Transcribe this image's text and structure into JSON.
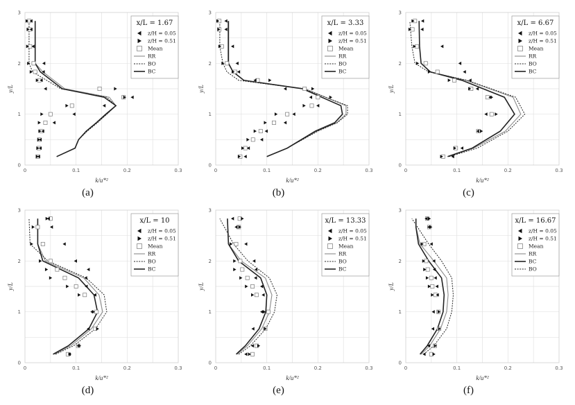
{
  "chart_data": [
    {
      "type": "line+scatter",
      "panel_label": "(a)",
      "title": "x/L = 1.67",
      "xlabel": "k/u*²",
      "ylabel": "y/L",
      "xlim": [
        0,
        0.3
      ],
      "ylim": [
        0,
        3
      ],
      "xticks": [
        "0",
        "0.1",
        "0.2",
        "0.3"
      ],
      "yticks": [
        "0",
        "1",
        "2",
        "3"
      ],
      "legend": {
        "placement": "top-right",
        "markers": [
          "z/H = 0.05",
          "z/H = 0.51",
          "Mean"
        ],
        "lines": [
          "RR",
          "BO",
          "BC"
        ]
      },
      "points": {
        "y": [
          2.833,
          2.667,
          2.333,
          2.0,
          1.833,
          1.667,
          1.5,
          1.333,
          1.167,
          1.0,
          0.833,
          0.667,
          0.5,
          0.333,
          0.167
        ],
        "z005": [
          0.012,
          0.012,
          0.016,
          0.037,
          0.036,
          0.032,
          0.04,
          0.21,
          0.155,
          0.096,
          0.057,
          0.035,
          0.03,
          0.03,
          0.027
        ],
        "z051": [
          0.004,
          0.006,
          0.005,
          0.007,
          0.012,
          0.024,
          0.177,
          0.195,
          0.082,
          0.033,
          0.028,
          0.029,
          0.027,
          0.025,
          0.024
        ],
        "mean": [
          0.008,
          0.009,
          0.01,
          0.017,
          0.02,
          0.028,
          0.146,
          0.193,
          0.092,
          0.05,
          0.04,
          0.032,
          0.028,
          0.027,
          0.025
        ]
      },
      "series": [
        {
          "name": "RR",
          "x": [
            0.062,
            0.098,
            0.105,
            0.12,
            0.14,
            0.16,
            0.178,
            0.165,
            0.078,
            0.035,
            0.02,
            0.02
          ],
          "y": [
            0.167,
            0.333,
            0.5,
            0.667,
            0.833,
            1.0,
            1.167,
            1.333,
            1.5,
            1.833,
            2.0,
            2.833
          ]
        },
        {
          "name": "BO",
          "x": [
            0.062,
            0.098,
            0.105,
            0.122,
            0.142,
            0.16,
            0.178,
            0.16,
            0.07,
            0.015,
            0.008,
            0.008
          ],
          "y": [
            0.167,
            0.333,
            0.5,
            0.667,
            0.833,
            1.0,
            1.167,
            1.333,
            1.5,
            1.833,
            2.0,
            2.833
          ]
        },
        {
          "name": "BC",
          "x": [
            0.062,
            0.098,
            0.105,
            0.12,
            0.14,
            0.158,
            0.178,
            0.155,
            0.073,
            0.03,
            0.02,
            0.02
          ],
          "y": [
            0.167,
            0.333,
            0.5,
            0.667,
            0.833,
            1.0,
            1.167,
            1.333,
            1.5,
            1.833,
            2.0,
            2.833
          ]
        }
      ]
    },
    {
      "type": "line+scatter",
      "panel_label": "(b)",
      "title": "x/L = 3.33",
      "xlabel": "k/u*²",
      "ylabel": "y/L",
      "xlim": [
        0,
        0.3
      ],
      "ylim": [
        0,
        3
      ],
      "xticks": [
        "0",
        "0.1",
        "0.2",
        "0.3"
      ],
      "yticks": [
        "0",
        "1",
        "2",
        "3"
      ],
      "legend": {
        "placement": "top-right",
        "markers": [
          "z/H = 0.05",
          "z/H = 0.51",
          "Mean"
        ],
        "lines": [
          "RR",
          "BO",
          "BC"
        ]
      },
      "points": {
        "y": [
          2.833,
          2.667,
          2.333,
          2.0,
          1.833,
          1.667,
          1.5,
          1.333,
          1.167,
          1.0,
          0.833,
          0.667,
          0.5,
          0.333,
          0.167
        ],
        "z005": [
          0.02,
          0.02,
          0.033,
          0.042,
          0.045,
          0.077,
          0.136,
          0.186,
          0.2,
          0.153,
          0.136,
          0.099,
          0.09,
          0.064,
          0.058
        ],
        "z051": [
          0.004,
          0.006,
          0.008,
          0.014,
          0.034,
          0.106,
          0.19,
          0.225,
          0.173,
          0.118,
          0.097,
          0.077,
          0.063,
          0.053,
          0.046
        ],
        "mean": [
          0.007,
          0.007,
          0.012,
          0.022,
          0.038,
          0.082,
          0.174,
          0.2,
          0.188,
          0.14,
          0.114,
          0.088,
          0.073,
          0.058,
          0.048
        ]
      },
      "series": [
        {
          "name": "RR",
          "x": [
            0.1,
            0.14,
            0.198,
            0.237,
            0.255,
            0.255,
            0.175,
            0.055,
            0.034,
            0.024,
            0.024
          ],
          "y": [
            0.167,
            0.333,
            0.667,
            0.833,
            1.0,
            1.167,
            1.5,
            1.667,
            1.833,
            2.0,
            2.833
          ]
        },
        {
          "name": "BO",
          "x": [
            0.1,
            0.14,
            0.2,
            0.238,
            0.258,
            0.258,
            0.172,
            0.045,
            0.022,
            0.014,
            0.008,
            0.008
          ],
          "y": [
            0.167,
            0.333,
            0.667,
            0.833,
            1.0,
            1.167,
            1.5,
            1.667,
            1.833,
            2.0,
            2.333,
            2.833
          ]
        },
        {
          "name": "BC",
          "x": [
            0.1,
            0.14,
            0.195,
            0.233,
            0.248,
            0.245,
            0.17,
            0.055,
            0.034,
            0.025,
            0.025
          ],
          "y": [
            0.167,
            0.333,
            0.667,
            0.833,
            1.0,
            1.167,
            1.5,
            1.667,
            1.833,
            2.0,
            2.833
          ]
        }
      ]
    },
    {
      "type": "line+scatter",
      "panel_label": "(c)",
      "title": "x/L = 6.67",
      "xlabel": "k/u*²",
      "ylabel": "y/L",
      "xlim": [
        0,
        0.3
      ],
      "ylim": [
        0,
        3
      ],
      "xticks": [
        "0",
        "0.1",
        "0.2",
        "0.3"
      ],
      "yticks": [
        "0",
        "1",
        "2",
        "3"
      ],
      "legend": {
        "placement": "top-right",
        "markers": [
          "z/H = 0.05",
          "z/H = 0.51",
          "Mean"
        ],
        "lines": [
          "RR",
          "BO",
          "BC"
        ]
      },
      "points": {
        "y": [
          2.833,
          2.667,
          2.333,
          2.0,
          1.833,
          1.667,
          1.5,
          1.333,
          1.0,
          0.667,
          0.333,
          0.167
        ],
        "z005": [
          0.033,
          0.032,
          0.071,
          0.106,
          0.115,
          0.126,
          0.14,
          0.165,
          0.157,
          0.141,
          0.11,
          0.092
        ],
        "z051": [
          0.014,
          0.008,
          0.017,
          0.023,
          0.046,
          0.085,
          0.125,
          0.168,
          0.177,
          0.148,
          0.096,
          0.07
        ],
        "mean": [
          0.018,
          0.013,
          0.022,
          0.039,
          0.062,
          0.095,
          0.128,
          0.16,
          0.168,
          0.142,
          0.098,
          0.073
        ]
      },
      "series": [
        {
          "name": "RR",
          "x": [
            0.082,
            0.133,
            0.195,
            0.225,
            0.21,
            0.118,
            0.048,
            0.03,
            0.027,
            0.026
          ],
          "y": [
            0.167,
            0.333,
            0.667,
            1.0,
            1.333,
            1.667,
            1.833,
            2.0,
            2.333,
            2.833
          ]
        },
        {
          "name": "BO",
          "x": [
            0.085,
            0.14,
            0.2,
            0.233,
            0.215,
            0.12,
            0.045,
            0.018,
            0.012,
            0.008
          ],
          "y": [
            0.167,
            0.333,
            0.667,
            1.0,
            1.333,
            1.667,
            1.833,
            2.0,
            2.333,
            2.833
          ]
        },
        {
          "name": "BC",
          "x": [
            0.082,
            0.13,
            0.185,
            0.213,
            0.193,
            0.11,
            0.048,
            0.03,
            0.027,
            0.026
          ],
          "y": [
            0.167,
            0.333,
            0.667,
            1.0,
            1.333,
            1.667,
            1.833,
            2.0,
            2.333,
            2.833
          ]
        }
      ]
    },
    {
      "type": "line+scatter",
      "panel_label": "(d)",
      "title": "x/L = 10",
      "xlabel": "k/u*²",
      "ylabel": "y/L",
      "xlim": [
        0,
        0.3
      ],
      "ylim": [
        0,
        3
      ],
      "xticks": [
        "0",
        "0.1",
        "0.2",
        "0.3"
      ],
      "yticks": [
        "0",
        "1",
        "2",
        "3"
      ],
      "legend": {
        "placement": "top-right",
        "markers": [
          "z/H = 0.05",
          "z/H = 0.51",
          "Mean"
        ],
        "lines": [
          "RR",
          "BO",
          "BC"
        ]
      },
      "points": {
        "y": [
          2.833,
          2.667,
          2.333,
          2.0,
          1.833,
          1.667,
          1.5,
          1.333,
          1.0,
          0.667,
          0.333,
          0.167
        ],
        "z005": [
          0.046,
          0.052,
          0.077,
          0.099,
          0.124,
          0.119,
          0.12,
          0.137,
          0.131,
          0.124,
          0.104,
          0.087
        ],
        "z051": [
          0.043,
          0.016,
          0.013,
          0.03,
          0.042,
          0.05,
          0.083,
          0.106,
          0.134,
          0.142,
          0.107,
          0.088
        ],
        "mean": [
          0.05,
          0.025,
          0.035,
          0.05,
          0.063,
          0.078,
          0.1,
          0.117,
          0.14,
          0.137,
          0.104,
          0.084
        ]
      },
      "series": [
        {
          "name": "RR",
          "x": [
            0.058,
            0.09,
            0.13,
            0.152,
            0.145,
            0.115,
            0.04,
            0.025,
            0.025
          ],
          "y": [
            0.167,
            0.333,
            0.667,
            1.0,
            1.333,
            1.667,
            2.0,
            2.333,
            2.833
          ]
        },
        {
          "name": "BO",
          "x": [
            0.06,
            0.095,
            0.138,
            0.16,
            0.155,
            0.12,
            0.045,
            0.01,
            0.008
          ],
          "y": [
            0.167,
            0.333,
            0.667,
            1.0,
            1.333,
            1.667,
            2.0,
            2.333,
            2.833
          ]
        },
        {
          "name": "BC",
          "x": [
            0.055,
            0.085,
            0.125,
            0.142,
            0.135,
            0.105,
            0.035,
            0.025,
            0.025
          ],
          "y": [
            0.167,
            0.333,
            0.667,
            1.0,
            1.333,
            1.667,
            2.0,
            2.333,
            2.833
          ]
        }
      ]
    },
    {
      "type": "line+scatter",
      "panel_label": "(e)",
      "title": "x/L = 13.33",
      "xlabel": "k/u*²",
      "ylabel": "y/L",
      "xlim": [
        0,
        0.3
      ],
      "ylim": [
        0,
        3
      ],
      "xticks": [
        "0",
        "0.1",
        "0.2",
        "0.3"
      ],
      "yticks": [
        "0",
        "1",
        "2",
        "3"
      ],
      "legend": {
        "placement": "top-right",
        "markers": [
          "z/H = 0.05",
          "z/H = 0.51",
          "Mean"
        ],
        "lines": [
          "RR",
          "BO",
          "BC"
        ]
      },
      "points": {
        "y": [
          2.833,
          2.667,
          2.333,
          2.0,
          1.833,
          1.667,
          1.5,
          1.333,
          1.0,
          0.667,
          0.333,
          0.167
        ],
        "z005": [
          0.033,
          0.04,
          0.059,
          0.075,
          0.079,
          0.078,
          0.09,
          0.093,
          0.09,
          0.073,
          0.072,
          0.059
        ],
        "z051": [
          0.052,
          0.047,
          0.03,
          0.037,
          0.037,
          0.049,
          0.06,
          0.072,
          0.095,
          0.097,
          0.084,
          0.066
        ],
        "mean": [
          0.047,
          0.045,
          0.04,
          0.048,
          0.052,
          0.062,
          0.072,
          0.08,
          0.103,
          0.097,
          0.08,
          0.072
        ]
      },
      "series": [
        {
          "name": "RR",
          "x": [
            0.042,
            0.062,
            0.09,
            0.105,
            0.11,
            0.097,
            0.05,
            0.025,
            0.023
          ],
          "y": [
            0.167,
            0.333,
            0.667,
            1.0,
            1.333,
            1.667,
            2.0,
            2.333,
            2.833
          ]
        },
        {
          "name": "BO",
          "x": [
            0.045,
            0.068,
            0.098,
            0.115,
            0.12,
            0.105,
            0.063,
            0.035,
            0.008
          ],
          "y": [
            0.167,
            0.333,
            0.667,
            1.0,
            1.333,
            1.667,
            2.0,
            2.333,
            2.833
          ]
        },
        {
          "name": "BC",
          "x": [
            0.04,
            0.058,
            0.085,
            0.098,
            0.1,
            0.088,
            0.045,
            0.025,
            0.023
          ],
          "y": [
            0.167,
            0.333,
            0.667,
            1.0,
            1.333,
            1.667,
            2.0,
            2.333,
            2.833
          ]
        }
      ]
    },
    {
      "type": "line+scatter",
      "panel_label": "(f)",
      "title": "x/L = 16.67",
      "xlabel": "k/u*²",
      "ylabel": "y/L",
      "xlim": [
        0,
        0.3
      ],
      "ylim": [
        0,
        3
      ],
      "xticks": [
        "0",
        "0.1",
        "0.2",
        "0.3"
      ],
      "yticks": [
        "0",
        "1",
        "2",
        "3"
      ],
      "legend": {
        "placement": "top-right",
        "markers": [
          "z/H = 0.05",
          "z/H = 0.51",
          "Mean"
        ],
        "lines": [
          "RR",
          "BC",
          "BO"
        ]
      },
      "points": {
        "y": [
          2.833,
          2.667,
          2.333,
          2.0,
          1.833,
          1.667,
          1.5,
          1.333,
          1.0,
          0.667,
          0.333,
          0.167
        ],
        "z005": [
          0.04,
          0.045,
          0.05,
          0.055,
          0.056,
          0.058,
          0.061,
          0.062,
          0.054,
          0.053,
          0.045,
          0.036
        ],
        "z051": [
          0.046,
          0.049,
          0.032,
          0.035,
          0.037,
          0.042,
          0.046,
          0.052,
          0.065,
          0.066,
          0.058,
          0.055
        ],
        "mean": [
          0.042,
          0.046,
          0.036,
          0.04,
          0.043,
          0.05,
          0.052,
          0.058,
          0.064,
          0.065,
          0.057,
          0.05
        ]
      },
      "series": [
        {
          "name": "RR",
          "x": [
            0.03,
            0.047,
            0.068,
            0.08,
            0.083,
            0.08,
            0.055,
            0.028,
            0.02,
            0.02
          ],
          "y": [
            0.167,
            0.333,
            0.667,
            1.0,
            1.333,
            1.667,
            2.0,
            2.333,
            2.667,
            2.833
          ]
        },
        {
          "name": "BC",
          "x": [
            0.028,
            0.042,
            0.062,
            0.073,
            0.075,
            0.07,
            0.045,
            0.025,
            0.02,
            0.02
          ],
          "y": [
            0.167,
            0.333,
            0.667,
            1.0,
            1.333,
            1.667,
            2.0,
            2.333,
            2.667,
            2.833
          ]
        },
        {
          "name": "BO",
          "x": [
            0.035,
            0.055,
            0.08,
            0.09,
            0.093,
            0.09,
            0.07,
            0.045,
            0.012
          ],
          "y": [
            0.167,
            0.333,
            0.667,
            1.0,
            1.333,
            1.667,
            2.0,
            2.333,
            2.833
          ]
        }
      ]
    }
  ],
  "colors": {
    "RR": "#8a8a8a",
    "BO": "#222222",
    "BC": "#222222",
    "grid": "#e2e2e2",
    "axis": "#cfcfcf"
  }
}
